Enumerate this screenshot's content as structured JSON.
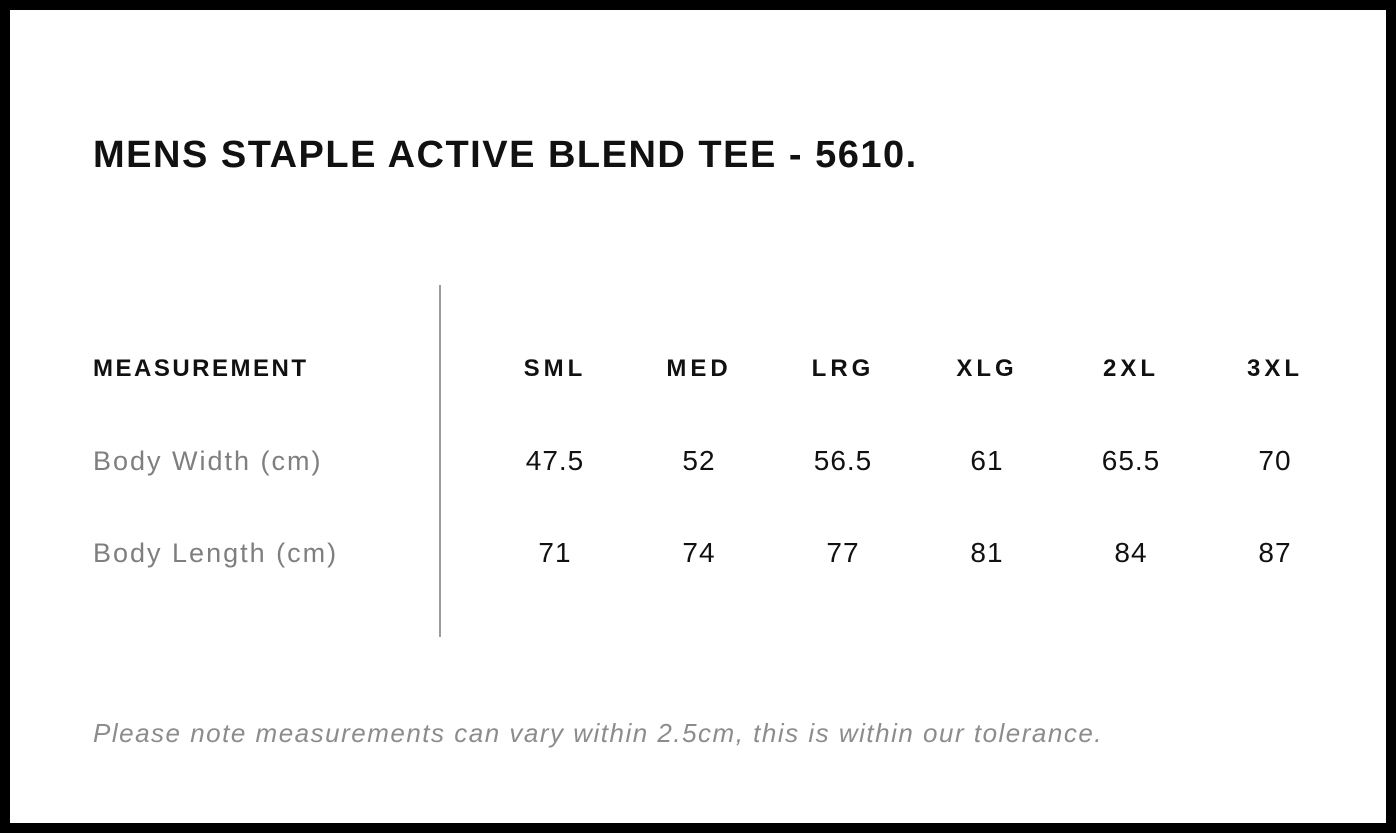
{
  "page": {
    "title": "MENS STAPLE ACTIVE BLEND TEE - 5610."
  },
  "size_chart": {
    "measurement_header": "MEASUREMENT",
    "sizes": [
      "SML",
      "MED",
      "LRG",
      "XLG",
      "2XL",
      "3XL"
    ],
    "rows": [
      {
        "label": "Body Width (cm)",
        "values": [
          "47.5",
          "52",
          "56.5",
          "61",
          "65.5",
          "70"
        ]
      },
      {
        "label": "Body Length (cm)",
        "values": [
          "71",
          "74",
          "77",
          "81",
          "84",
          "87"
        ]
      }
    ]
  },
  "note": "Please note measurements can vary within 2.5cm, this is within our tolerance.",
  "colors": {
    "frame": "#000000",
    "heading_text": "#111111",
    "row_label_text": "#7f7f7f",
    "note_text": "#8c8c8c",
    "divider": "#9c9c9c",
    "background": "#ffffff"
  }
}
